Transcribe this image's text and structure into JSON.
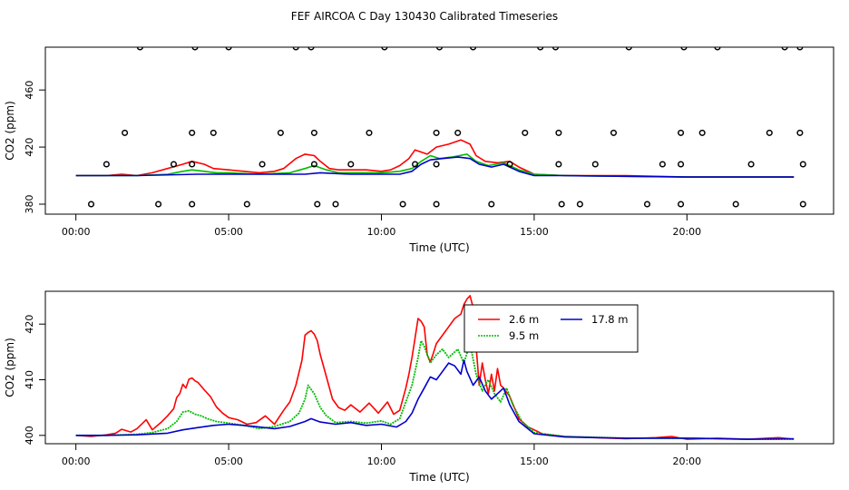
{
  "title": "FEF AIRCOA C  Day 130430  Calibrated Timeseries",
  "chart_data": [
    {
      "type": "line",
      "panel": "top",
      "xlabel": "Time (UTC)",
      "ylabel": "CO2 (ppm)",
      "xlim": [
        -1.0,
        24.8
      ],
      "ylim": [
        373,
        490
      ],
      "x_ticks": [
        0,
        5,
        10,
        15,
        20
      ],
      "x_tick_labels": [
        "00:00",
        "05:00",
        "10:00",
        "15:00",
        "20:00"
      ],
      "y_ticks": [
        380,
        420,
        460
      ],
      "y_tick_labels": [
        "380",
        "420",
        "460"
      ],
      "grid": false,
      "series": [
        {
          "color": "#ff0000",
          "x": [
            0.0,
            1.0,
            1.5,
            2.0,
            2.5,
            3.0,
            3.5,
            3.8,
            4.2,
            4.5,
            5.0,
            5.5,
            6.0,
            6.5,
            6.8,
            7.2,
            7.5,
            7.8,
            8.0,
            8.3,
            8.6,
            9.0,
            9.5,
            10.0,
            10.3,
            10.6,
            10.9,
            11.1,
            11.5,
            11.8,
            12.2,
            12.6,
            12.9,
            13.1,
            13.4,
            13.8,
            14.2,
            14.5,
            15.0,
            16.0,
            18.0,
            20.0,
            22.0,
            23.5
          ],
          "y": [
            400,
            400,
            401,
            400,
            402,
            405,
            408,
            410,
            408,
            405,
            404,
            403,
            402,
            403,
            405,
            412,
            415,
            414,
            410,
            405,
            404,
            404,
            404,
            403,
            404,
            407,
            412,
            418,
            415,
            420,
            422,
            425,
            422,
            414,
            410,
            409,
            410,
            406,
            401,
            400,
            400,
            399,
            399,
            399
          ]
        },
        {
          "color": "#00bb00",
          "x": [
            0.0,
            1.0,
            2.0,
            3.0,
            3.5,
            3.8,
            4.2,
            4.6,
            5.0,
            6.0,
            7.0,
            7.5,
            7.8,
            8.2,
            8.6,
            9.0,
            10.0,
            10.6,
            11.0,
            11.3,
            11.6,
            11.9,
            12.3,
            12.8,
            13.1,
            13.5,
            14.0,
            14.5,
            15.0,
            16.0,
            20.0,
            23.5
          ],
          "y": [
            400,
            400,
            400,
            401,
            403,
            404,
            403,
            402,
            402,
            401,
            402,
            405,
            407,
            404,
            402,
            402,
            402,
            403,
            405,
            410,
            414,
            412,
            413,
            415,
            410,
            407,
            409,
            404,
            401,
            400,
            399,
            399
          ]
        },
        {
          "color": "#0000cc",
          "x": [
            0.0,
            2.0,
            4.0,
            6.0,
            7.5,
            8.0,
            9.0,
            10.0,
            10.6,
            11.0,
            11.3,
            11.6,
            12.0,
            12.5,
            12.9,
            13.2,
            13.6,
            14.0,
            14.5,
            15.0,
            16.0,
            20.0,
            23.5
          ],
          "y": [
            400,
            400,
            401,
            401,
            401,
            402,
            401,
            401,
            401,
            403,
            408,
            411,
            412,
            413,
            412,
            408,
            406,
            408,
            403,
            400,
            400,
            399,
            399
          ]
        }
      ],
      "markers": {
        "shape": "open-circle",
        "x": [
          0.5,
          1.0,
          1.6,
          2.1,
          2.7,
          3.2,
          3.8,
          3.8,
          3.8,
          3.9,
          4.5,
          5.0,
          5.6,
          6.1,
          6.7,
          7.2,
          7.7,
          7.8,
          7.8,
          7.9,
          8.5,
          9.0,
          9.6,
          10.1,
          10.7,
          11.1,
          11.8,
          11.8,
          11.8,
          11.9,
          12.5,
          13.0,
          13.6,
          14.2,
          14.7,
          15.2,
          15.7,
          15.8,
          15.8,
          15.9,
          16.5,
          17.0,
          17.6,
          18.1,
          18.7,
          19.2,
          19.8,
          19.8,
          19.8,
          19.9,
          20.5,
          21.0,
          21.6,
          22.1,
          22.7,
          23.2,
          23.7,
          23.7,
          23.8,
          23.8
        ],
        "y": [
          380,
          408,
          430,
          490,
          380,
          408,
          430,
          408,
          380,
          490,
          430,
          490,
          380,
          408,
          430,
          490,
          490,
          430,
          408,
          380,
          380,
          408,
          430,
          490,
          380,
          408,
          430,
          408,
          380,
          490,
          430,
          490,
          380,
          408,
          430,
          490,
          490,
          430,
          408,
          380,
          380,
          408,
          430,
          490,
          380,
          408,
          430,
          408,
          380,
          490,
          430,
          490,
          380,
          408,
          430,
          490,
          490,
          430,
          408,
          380
        ]
      }
    },
    {
      "type": "line",
      "panel": "bottom",
      "xlabel": "Time (UTC)",
      "ylabel": "CO2 (ppm)",
      "xlim": [
        -1.0,
        24.8
      ],
      "ylim": [
        398.5,
        425.9
      ],
      "x_ticks": [
        0,
        5,
        10,
        15,
        20
      ],
      "x_tick_labels": [
        "00:00",
        "05:00",
        "10:00",
        "15:00",
        "20:00"
      ],
      "y_ticks": [
        400,
        410,
        420
      ],
      "y_tick_labels": [
        "400",
        "410",
        "420"
      ],
      "grid": false,
      "legend_placement": "top-center",
      "series": [
        {
          "name": "2.6 m",
          "color": "#ff0000",
          "line": "solid",
          "x": [
            0.0,
            0.5,
            1.0,
            1.3,
            1.5,
            1.8,
            2.0,
            2.3,
            2.5,
            2.8,
            3.0,
            3.2,
            3.3,
            3.4,
            3.5,
            3.6,
            3.7,
            3.8,
            3.9,
            4.0,
            4.2,
            4.4,
            4.6,
            4.8,
            5.0,
            5.3,
            5.6,
            5.9,
            6.2,
            6.5,
            6.8,
            7.0,
            7.2,
            7.4,
            7.5,
            7.6,
            7.7,
            7.8,
            7.9,
            8.0,
            8.2,
            8.4,
            8.6,
            8.8,
            9.0,
            9.3,
            9.6,
            9.9,
            10.2,
            10.4,
            10.6,
            10.8,
            10.9,
            11.0,
            11.1,
            11.2,
            11.3,
            11.4,
            11.5,
            11.6,
            11.7,
            11.8,
            12.0,
            12.2,
            12.4,
            12.6,
            12.7,
            12.8,
            12.9,
            13.0,
            13.1,
            13.2,
            13.3,
            13.4,
            13.5,
            13.6,
            13.7,
            13.8,
            13.9,
            14.0,
            14.2,
            14.5,
            14.8,
            15.0,
            15.3,
            16.0,
            17.0,
            18.0,
            19.0,
            19.5,
            20.0,
            21.0,
            22.0,
            23.0,
            23.5
          ],
          "y": [
            400.0,
            399.8,
            400.1,
            400.4,
            401.1,
            400.6,
            401.2,
            402.8,
            401.0,
            402.4,
            403.5,
            404.8,
            406.8,
            407.5,
            409.2,
            408.5,
            410.1,
            410.3,
            409.8,
            409.5,
            408.2,
            407.0,
            405.1,
            404.0,
            403.2,
            402.8,
            402.0,
            402.3,
            403.5,
            402.0,
            404.5,
            406.0,
            409.0,
            413.5,
            418.0,
            418.5,
            418.8,
            418.2,
            417.0,
            414.5,
            410.5,
            406.5,
            405.0,
            404.5,
            405.5,
            404.2,
            405.8,
            404.0,
            406.0,
            403.8,
            404.5,
            408.5,
            411.0,
            414.0,
            417.5,
            421.0,
            420.5,
            419.5,
            414.5,
            413.2,
            414.8,
            416.5,
            418.0,
            419.5,
            421.0,
            421.8,
            423.5,
            424.5,
            425.1,
            423.0,
            416.0,
            409.0,
            413.0,
            410.0,
            407.5,
            411.0,
            408.0,
            412.0,
            409.0,
            408.5,
            407.0,
            403.0,
            401.5,
            401.0,
            400.2,
            399.8,
            399.6,
            399.4,
            399.6,
            399.8,
            399.3,
            399.5,
            399.3,
            399.6,
            399.3
          ]
        },
        {
          "name": "9.5 m",
          "color": "#00bb00",
          "line": "dotted",
          "x": [
            0.0,
            1.0,
            2.0,
            2.5,
            3.0,
            3.3,
            3.5,
            3.7,
            3.9,
            4.1,
            4.3,
            4.6,
            5.0,
            5.5,
            6.0,
            6.5,
            7.0,
            7.3,
            7.5,
            7.6,
            7.8,
            8.0,
            8.2,
            8.5,
            9.0,
            9.5,
            10.0,
            10.3,
            10.6,
            10.8,
            11.0,
            11.1,
            11.2,
            11.3,
            11.4,
            11.6,
            11.8,
            12.0,
            12.2,
            12.5,
            12.7,
            12.9,
            13.1,
            13.3,
            13.5,
            13.7,
            13.9,
            14.1,
            14.3,
            14.6,
            15.0,
            16.0,
            18.0,
            20.0,
            22.0,
            23.5
          ],
          "y": [
            400.0,
            400.0,
            400.2,
            400.5,
            401.2,
            402.5,
            404.2,
            404.4,
            403.8,
            403.5,
            403.0,
            402.5,
            402.2,
            401.8,
            401.2,
            401.6,
            402.5,
            404.0,
            406.5,
            409.0,
            407.5,
            405.0,
            403.5,
            402.3,
            402.5,
            402.2,
            402.6,
            402.0,
            403.0,
            406.0,
            409.0,
            411.5,
            414.0,
            417.0,
            416.0,
            413.0,
            414.5,
            415.5,
            414.0,
            415.5,
            413.0,
            416.5,
            411.0,
            408.0,
            410.0,
            407.5,
            406.0,
            408.5,
            405.5,
            402.5,
            400.5,
            399.8,
            399.5,
            399.5,
            399.3,
            399.3
          ]
        },
        {
          "name": "17.8 m",
          "color": "#0000cc",
          "line": "solid",
          "x": [
            0.0,
            1.0,
            2.0,
            3.0,
            3.5,
            4.0,
            4.5,
            5.0,
            5.5,
            6.0,
            6.5,
            7.0,
            7.5,
            7.7,
            8.0,
            8.5,
            9.0,
            9.5,
            10.0,
            10.5,
            10.8,
            11.0,
            11.2,
            11.4,
            11.6,
            11.8,
            12.0,
            12.2,
            12.4,
            12.6,
            12.7,
            12.8,
            13.0,
            13.2,
            13.4,
            13.6,
            13.8,
            14.0,
            14.2,
            14.5,
            15.0,
            16.0,
            18.0,
            20.0,
            22.0,
            23.5
          ],
          "y": [
            400.0,
            400.0,
            400.1,
            400.4,
            401.0,
            401.4,
            401.8,
            402.0,
            401.8,
            401.5,
            401.2,
            401.6,
            402.5,
            403.0,
            402.4,
            402.0,
            402.3,
            401.8,
            402.0,
            401.5,
            402.5,
            404.0,
            406.5,
            408.5,
            410.5,
            410.0,
            411.5,
            413.0,
            412.5,
            411.0,
            413.5,
            411.5,
            409.0,
            410.5,
            408.0,
            406.5,
            407.5,
            408.5,
            405.5,
            402.5,
            400.3,
            399.7,
            399.5,
            399.5,
            399.3,
            399.4
          ]
        }
      ]
    }
  ]
}
